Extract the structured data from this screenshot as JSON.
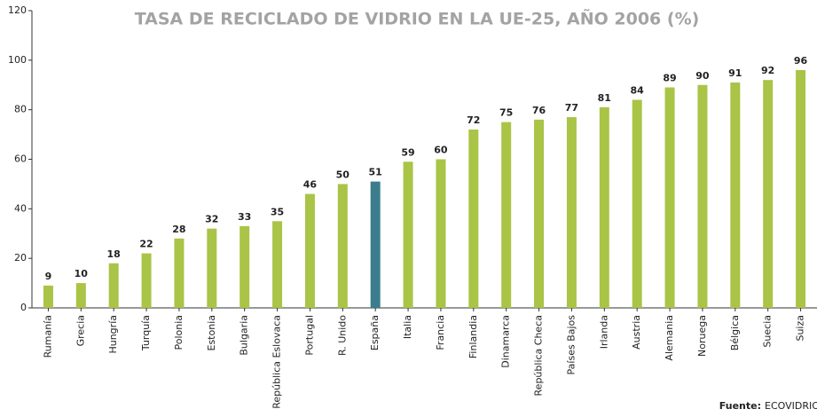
{
  "chart_data": {
    "type": "bar",
    "title": "TASA DE RECICLADO DE VIDRIO EN LA UE-25, AÑO 2006 (%)",
    "categories": [
      "Rumanía",
      "Grecia",
      "Hungría",
      "Turquía",
      "Polonia",
      "Estonia",
      "Bulgaria",
      "República Eslovaca",
      "Portugal",
      "R. Unido",
      "España",
      "Italia",
      "Francia",
      "Finlandia",
      "Dinamarca",
      "República Checa",
      "Países Bajos",
      "Irlanda",
      "Austria",
      "Alemania",
      "Noruega",
      "Bélgica",
      "Suecia",
      "Suiza"
    ],
    "values": [
      9,
      10,
      18,
      22,
      28,
      32,
      33,
      35,
      46,
      50,
      51,
      59,
      60,
      72,
      75,
      76,
      77,
      81,
      84,
      89,
      90,
      91,
      92,
      96
    ],
    "colors": [
      "#a9c446",
      "#a9c446",
      "#a9c446",
      "#a9c446",
      "#a9c446",
      "#a9c446",
      "#a9c446",
      "#a9c446",
      "#a9c446",
      "#a9c446",
      "#3b7d8d",
      "#a9c446",
      "#a9c446",
      "#a9c446",
      "#a9c446",
      "#a9c446",
      "#a9c446",
      "#a9c446",
      "#a9c446",
      "#a9c446",
      "#a9c446",
      "#a9c446",
      "#a9c446",
      "#a9c446"
    ],
    "ylim": [
      0,
      120
    ],
    "yticks": [
      0,
      20,
      40,
      60,
      80,
      100,
      120
    ],
    "grid": false,
    "source_label": "Fuente:",
    "source": "ECOVIDRIO"
  }
}
